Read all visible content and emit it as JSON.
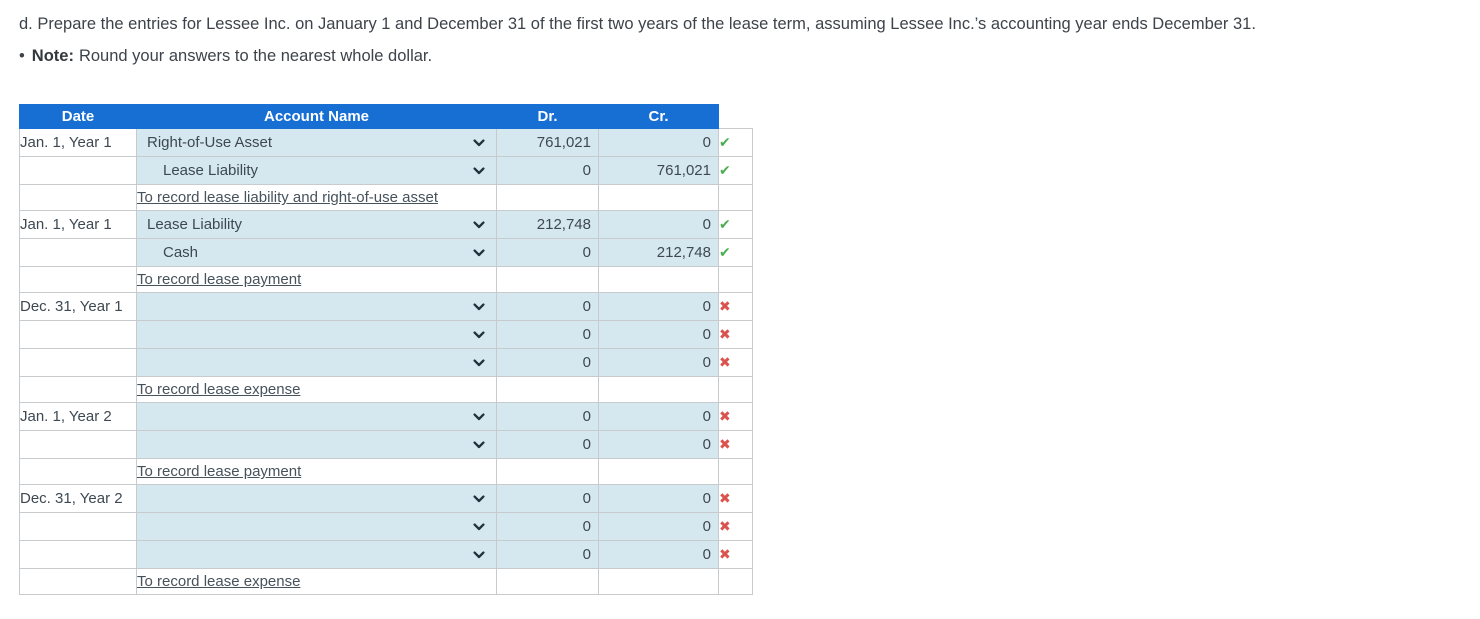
{
  "instruction": {
    "text": "d. Prepare the entries for Lessee Inc. on January 1 and December 31 of the first two years of the lease term, assuming Lessee Inc.’s accounting year ends December 31."
  },
  "note": {
    "bullet": "•",
    "label": "Note:",
    "text": "Round your answers to the nearest whole dollar."
  },
  "journal_table": {
    "headers": {
      "date": "Date",
      "account_name": "Account Name",
      "dr": "Dr.",
      "cr": "Cr."
    },
    "rows": [
      {
        "type": "entry",
        "date": "Jan. 1, Year 1",
        "account": "Right-of-Use Asset",
        "indent": false,
        "dr": "761,021",
        "cr": "0",
        "status": "correct"
      },
      {
        "type": "entry",
        "date": "",
        "account": "Lease Liability",
        "indent": true,
        "dr": "0",
        "cr": "761,021",
        "status": "correct"
      },
      {
        "type": "memo",
        "date": "",
        "text": "To record lease liability and right-of-use asset"
      },
      {
        "type": "entry",
        "date": "Jan. 1, Year 1",
        "account": "Lease Liability",
        "indent": false,
        "dr": "212,748",
        "cr": "0",
        "status": "correct"
      },
      {
        "type": "entry",
        "date": "",
        "account": "Cash",
        "indent": true,
        "dr": "0",
        "cr": "212,748",
        "status": "correct"
      },
      {
        "type": "memo",
        "date": "",
        "text": "To record lease payment"
      },
      {
        "type": "entry",
        "date": "Dec. 31, Year 1",
        "account": "",
        "indent": false,
        "dr": "0",
        "cr": "0",
        "status": "incorrect"
      },
      {
        "type": "entry",
        "date": "",
        "account": "",
        "indent": false,
        "dr": "0",
        "cr": "0",
        "status": "incorrect"
      },
      {
        "type": "entry",
        "date": "",
        "account": "",
        "indent": false,
        "dr": "0",
        "cr": "0",
        "status": "incorrect"
      },
      {
        "type": "memo",
        "date": "",
        "text": "To record lease expense"
      },
      {
        "type": "entry",
        "date": "Jan. 1, Year 2",
        "account": "",
        "indent": false,
        "dr": "0",
        "cr": "0",
        "status": "incorrect"
      },
      {
        "type": "entry",
        "date": "",
        "account": "",
        "indent": false,
        "dr": "0",
        "cr": "0",
        "status": "incorrect"
      },
      {
        "type": "memo",
        "date": "",
        "text": "To record lease payment"
      },
      {
        "type": "entry",
        "date": "Dec. 31, Year 2",
        "account": "",
        "indent": false,
        "dr": "0",
        "cr": "0",
        "status": "incorrect"
      },
      {
        "type": "entry",
        "date": "",
        "account": "",
        "indent": false,
        "dr": "0",
        "cr": "0",
        "status": "incorrect"
      },
      {
        "type": "entry",
        "date": "",
        "account": "",
        "indent": false,
        "dr": "0",
        "cr": "0",
        "status": "incorrect"
      },
      {
        "type": "memo",
        "date": "",
        "text": "To record lease expense"
      }
    ]
  },
  "icons": {
    "check": "✔",
    "cross": "✖",
    "chevron_down": "chevron-down"
  },
  "colors": {
    "header_blue": "#176fd4",
    "cell_light_blue": "#d5e8f0",
    "correct_green": "#4bae4f",
    "incorrect_red": "#d9534f",
    "border_gray": "#c8cbce",
    "text_slate": "#3e4852"
  }
}
